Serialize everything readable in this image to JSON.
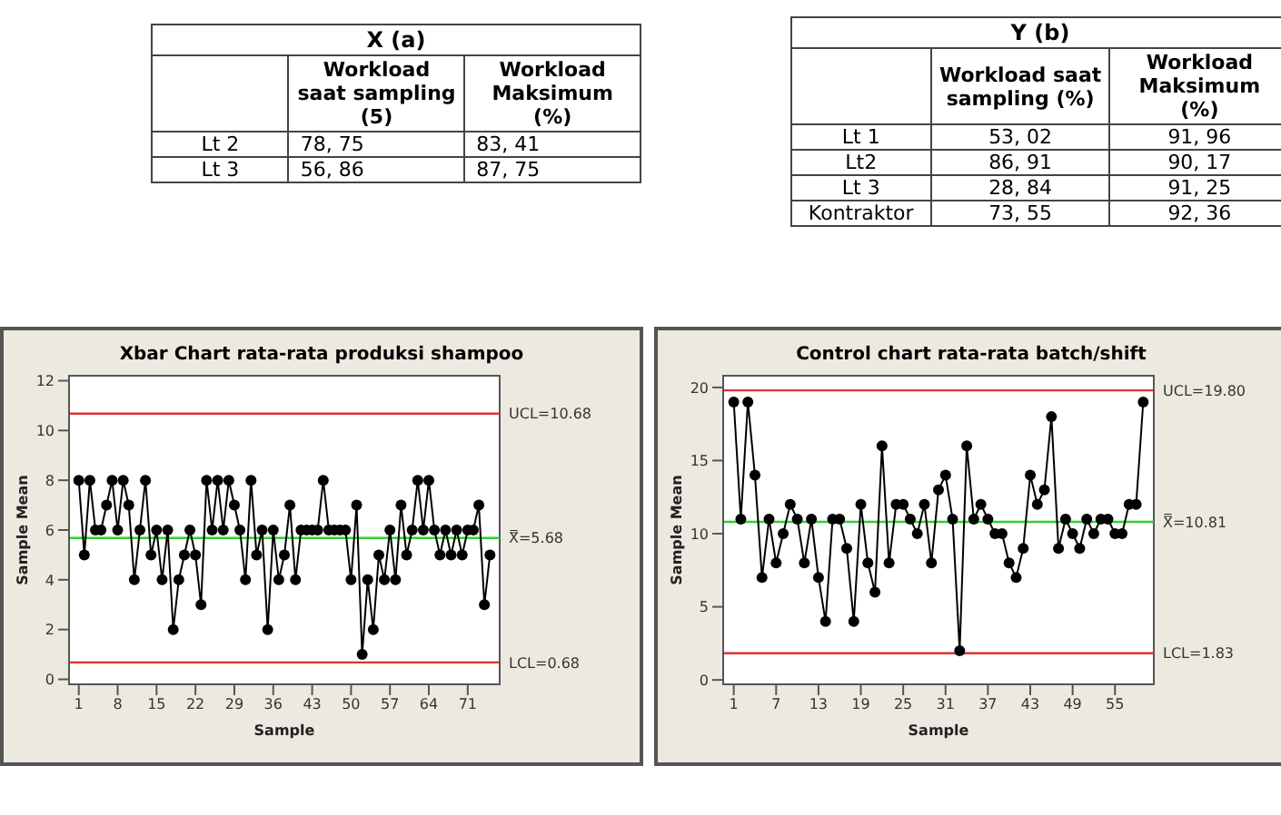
{
  "chart_data": [
    {
      "type": "heatmap",
      "title": "X (a)",
      "categories": [
        "Workload saat sampling (5)",
        "Workload Maksimum (%)"
      ],
      "y_categories": [
        "Lt 2",
        "Lt 3"
      ],
      "cells": [
        [
          null,
          null
        ],
        [
          null,
          null
        ]
      ],
      "cell_labels": [
        [
          "78, 75",
          "83, 41"
        ],
        [
          "56, 86",
          "87, 75"
        ]
      ]
    },
    {
      "type": "heatmap",
      "title": "Y (b)",
      "categories": [
        "Workload saat sampling (%)",
        "Workload Maksimum (%)"
      ],
      "y_categories": [
        "Lt 1",
        "Lt2",
        "Lt 3",
        "Kontraktor"
      ],
      "cells": [
        [
          null,
          null
        ],
        [
          null,
          null
        ],
        [
          null,
          null
        ],
        [
          null,
          null
        ]
      ],
      "cell_labels": [
        [
          "53, 02",
          "91, 96"
        ],
        [
          "86, 91",
          "90, 17"
        ],
        [
          "28, 84",
          "91, 25"
        ],
        [
          "73, 55",
          "92, 36"
        ]
      ]
    },
    {
      "type": "line",
      "title": "Xbar Chart rata-rata produksi shampoo",
      "xlabel": "Sample",
      "ylabel": "Sample Mean",
      "marker": "circle",
      "x": [
        1,
        2,
        3,
        4,
        5,
        6,
        7,
        8,
        9,
        10,
        11,
        12,
        13,
        14,
        15,
        16,
        17,
        18,
        19,
        20,
        21,
        22,
        23,
        24,
        25,
        26,
        27,
        28,
        29,
        30,
        31,
        32,
        33,
        34,
        35,
        36,
        37,
        38,
        39,
        40,
        41,
        42,
        43,
        44,
        45,
        46,
        47,
        48,
        49,
        50,
        51,
        52,
        53,
        54,
        55,
        56,
        57,
        58,
        59,
        60,
        61,
        62,
        63,
        64,
        65,
        66,
        67,
        68,
        69,
        70,
        71,
        72,
        73,
        74,
        75
      ],
      "series": [
        {
          "color": "#000000",
          "values": [
            8,
            5,
            8,
            6,
            6,
            7,
            8,
            6,
            8,
            7,
            4,
            6,
            8,
            5,
            6,
            4,
            6,
            2,
            4,
            5,
            6,
            5,
            3,
            8,
            6,
            8,
            6,
            8,
            7,
            6,
            4,
            8,
            5,
            6,
            2,
            6,
            4,
            5,
            7,
            4,
            6,
            6,
            6,
            6,
            8,
            6,
            6,
            6,
            6,
            4,
            7,
            1,
            4,
            2,
            5,
            4,
            6,
            4,
            7,
            5,
            6,
            8,
            6,
            8,
            6,
            5,
            6,
            5,
            6,
            5,
            6,
            6,
            7,
            3,
            5
          ]
        }
      ],
      "xlim": [
        -0.75,
        76.75
      ],
      "xticks": [
        1,
        8,
        15,
        22,
        29,
        36,
        43,
        50,
        57,
        64,
        71
      ],
      "ylim": [
        -0.2,
        12.2
      ],
      "yticks": [
        0,
        2,
        4,
        6,
        8,
        10,
        12
      ],
      "ref_lines": [
        {
          "axis": "y",
          "value": 10.68,
          "label": "UCL=10.68",
          "color": "#e03030"
        },
        {
          "axis": "y",
          "value": 5.68,
          "label": "X̿=5.68",
          "color": "#30d030"
        },
        {
          "axis": "y",
          "value": 0.68,
          "label": "LCL=0.68",
          "color": "#e03030"
        }
      ]
    },
    {
      "type": "line",
      "title": "Control chart rata-rata batch/shift",
      "xlabel": "Sample",
      "ylabel": "Sample Mean",
      "marker": "circle",
      "x": [
        1,
        2,
        3,
        4,
        5,
        6,
        7,
        8,
        9,
        10,
        11,
        12,
        13,
        14,
        15,
        16,
        17,
        18,
        19,
        20,
        21,
        22,
        23,
        24,
        25,
        26,
        27,
        28,
        29,
        30,
        31,
        32,
        33,
        34,
        35,
        36,
        37,
        38,
        39,
        40,
        41,
        42,
        43,
        44,
        45,
        46,
        47,
        48,
        49,
        50,
        51,
        52,
        53,
        54,
        55,
        56,
        57,
        58,
        59
      ],
      "series": [
        {
          "color": "#000000",
          "values": [
            19,
            11,
            19,
            14,
            7,
            11,
            8,
            10,
            12,
            11,
            8,
            11,
            7,
            4,
            11,
            11,
            9,
            4,
            12,
            8,
            6,
            16,
            8,
            12,
            12,
            11,
            10,
            12,
            8,
            13,
            14,
            11,
            2,
            16,
            11,
            12,
            11,
            10,
            10,
            8,
            7,
            9,
            14,
            12,
            13,
            18,
            9,
            11,
            10,
            9,
            11,
            10,
            11,
            11,
            10,
            10,
            12,
            12,
            19
          ]
        }
      ],
      "xlim": [
        -0.5,
        60.5
      ],
      "xticks": [
        1,
        7,
        13,
        19,
        25,
        31,
        37,
        43,
        49,
        55
      ],
      "ylim": [
        -0.3,
        20.8
      ],
      "yticks": [
        0,
        5,
        10,
        15,
        20
      ],
      "ref_lines": [
        {
          "axis": "y",
          "value": 19.8,
          "label": "UCL=19.80",
          "color": "#e03030"
        },
        {
          "axis": "y",
          "value": 10.81,
          "label": "X̿=10.81",
          "color": "#30d030"
        },
        {
          "axis": "y",
          "value": 1.83,
          "label": "LCL=1.83",
          "color": "#e03030"
        }
      ]
    }
  ]
}
